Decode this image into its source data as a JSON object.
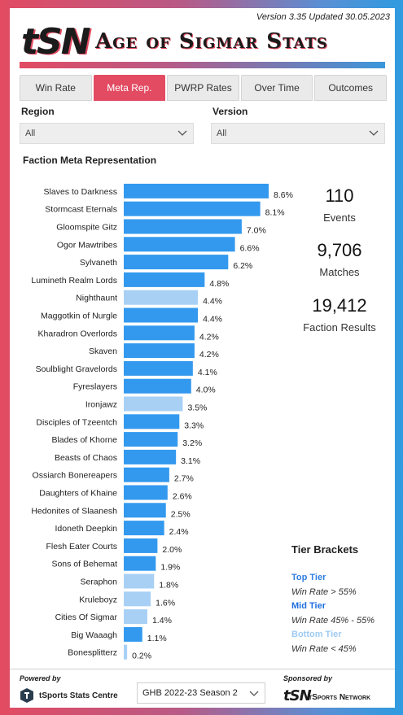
{
  "header": {
    "version": "Version 3.35 Updated 30.05.2023",
    "logo": "tSN",
    "title": "Age of Sigmar Stats"
  },
  "tabs": [
    {
      "label": "Win Rate",
      "active": false
    },
    {
      "label": "Meta Rep.",
      "active": true
    },
    {
      "label": "PWRP Rates",
      "active": false
    },
    {
      "label": "Over Time",
      "active": false
    },
    {
      "label": "Outcomes",
      "active": false
    }
  ],
  "filters": {
    "region": {
      "label": "Region",
      "value": "All"
    },
    "version": {
      "label": "Version",
      "value": "All"
    }
  },
  "section_title": "Faction Meta Representation",
  "stats": [
    {
      "value": "110",
      "label": "Events"
    },
    {
      "value": "9,706",
      "label": "Matches"
    },
    {
      "value": "19,412",
      "label": "Faction Results"
    }
  ],
  "tiers": {
    "title": "Tier Brackets",
    "items": [
      {
        "name": "Top Tier",
        "desc": "Win Rate > 55%",
        "color": "#2f7ee0"
      },
      {
        "name": "Mid Tier",
        "desc": "Win Rate 45% - 55%",
        "color": "#1f6fe0"
      },
      {
        "name": "Bottom Tier",
        "desc": "Win Rate < 45%",
        "color": "#9ecbf2"
      }
    ]
  },
  "colors": {
    "bar_mid": "#3399ee",
    "bar_bottom": "#a8d0f5"
  },
  "chart_data": {
    "type": "bar",
    "orientation": "horizontal",
    "categories": [
      "Slaves to Darkness",
      "Stormcast Eternals",
      "Gloomspite Gitz",
      "Ogor Mawtribes",
      "Sylvaneth",
      "Lumineth Realm Lords",
      "Nighthaunt",
      "Maggotkin of Nurgle",
      "Kharadron Overlords",
      "Skaven",
      "Soulblight Gravelords",
      "Fyreslayers",
      "Ironjawz",
      "Disciples of Tzeentch",
      "Blades of Khorne",
      "Beasts of Chaos",
      "Ossiarch Bonereapers",
      "Daughters of Khaine",
      "Hedonites of Slaanesh",
      "Idoneth Deepkin",
      "Flesh Eater Courts",
      "Sons of Behemat",
      "Seraphon",
      "Kruleboyz",
      "Cities Of Sigmar",
      "Big Waaagh",
      "Bonesplitterz"
    ],
    "values": [
      8.6,
      8.1,
      7.0,
      6.6,
      6.2,
      4.8,
      4.4,
      4.4,
      4.2,
      4.2,
      4.1,
      4.0,
      3.5,
      3.3,
      3.2,
      3.1,
      2.7,
      2.6,
      2.5,
      2.4,
      2.0,
      1.9,
      1.8,
      1.6,
      1.4,
      1.1,
      0.2
    ],
    "labels": [
      "8.6%",
      "8.1%",
      "7.0%",
      "6.6%",
      "6.2%",
      "4.8%",
      "4.4%",
      "4.4%",
      "4.2%",
      "4.2%",
      "4.1%",
      "4.0%",
      "3.5%",
      "3.3%",
      "3.2%",
      "3.1%",
      "2.7%",
      "2.6%",
      "2.5%",
      "2.4%",
      "2.0%",
      "1.9%",
      "1.8%",
      "1.6%",
      "1.4%",
      "1.1%",
      "0.2%"
    ],
    "tiers": [
      "mid",
      "mid",
      "mid",
      "mid",
      "mid",
      "mid",
      "bottom",
      "mid",
      "mid",
      "mid",
      "mid",
      "mid",
      "bottom",
      "mid",
      "mid",
      "mid",
      "mid",
      "mid",
      "mid",
      "mid",
      "mid",
      "mid",
      "bottom",
      "bottom",
      "bottom",
      "mid",
      "bottom"
    ],
    "unit": "%"
  },
  "footer": {
    "powered_by": "Powered by",
    "powered_name": "tSports Stats Centre",
    "season_select": "GHB 2022-23 Season 2",
    "sponsored_by": "Sponsored by",
    "sponsor_logo": "tSN",
    "sponsor_name": "tSports Network"
  }
}
